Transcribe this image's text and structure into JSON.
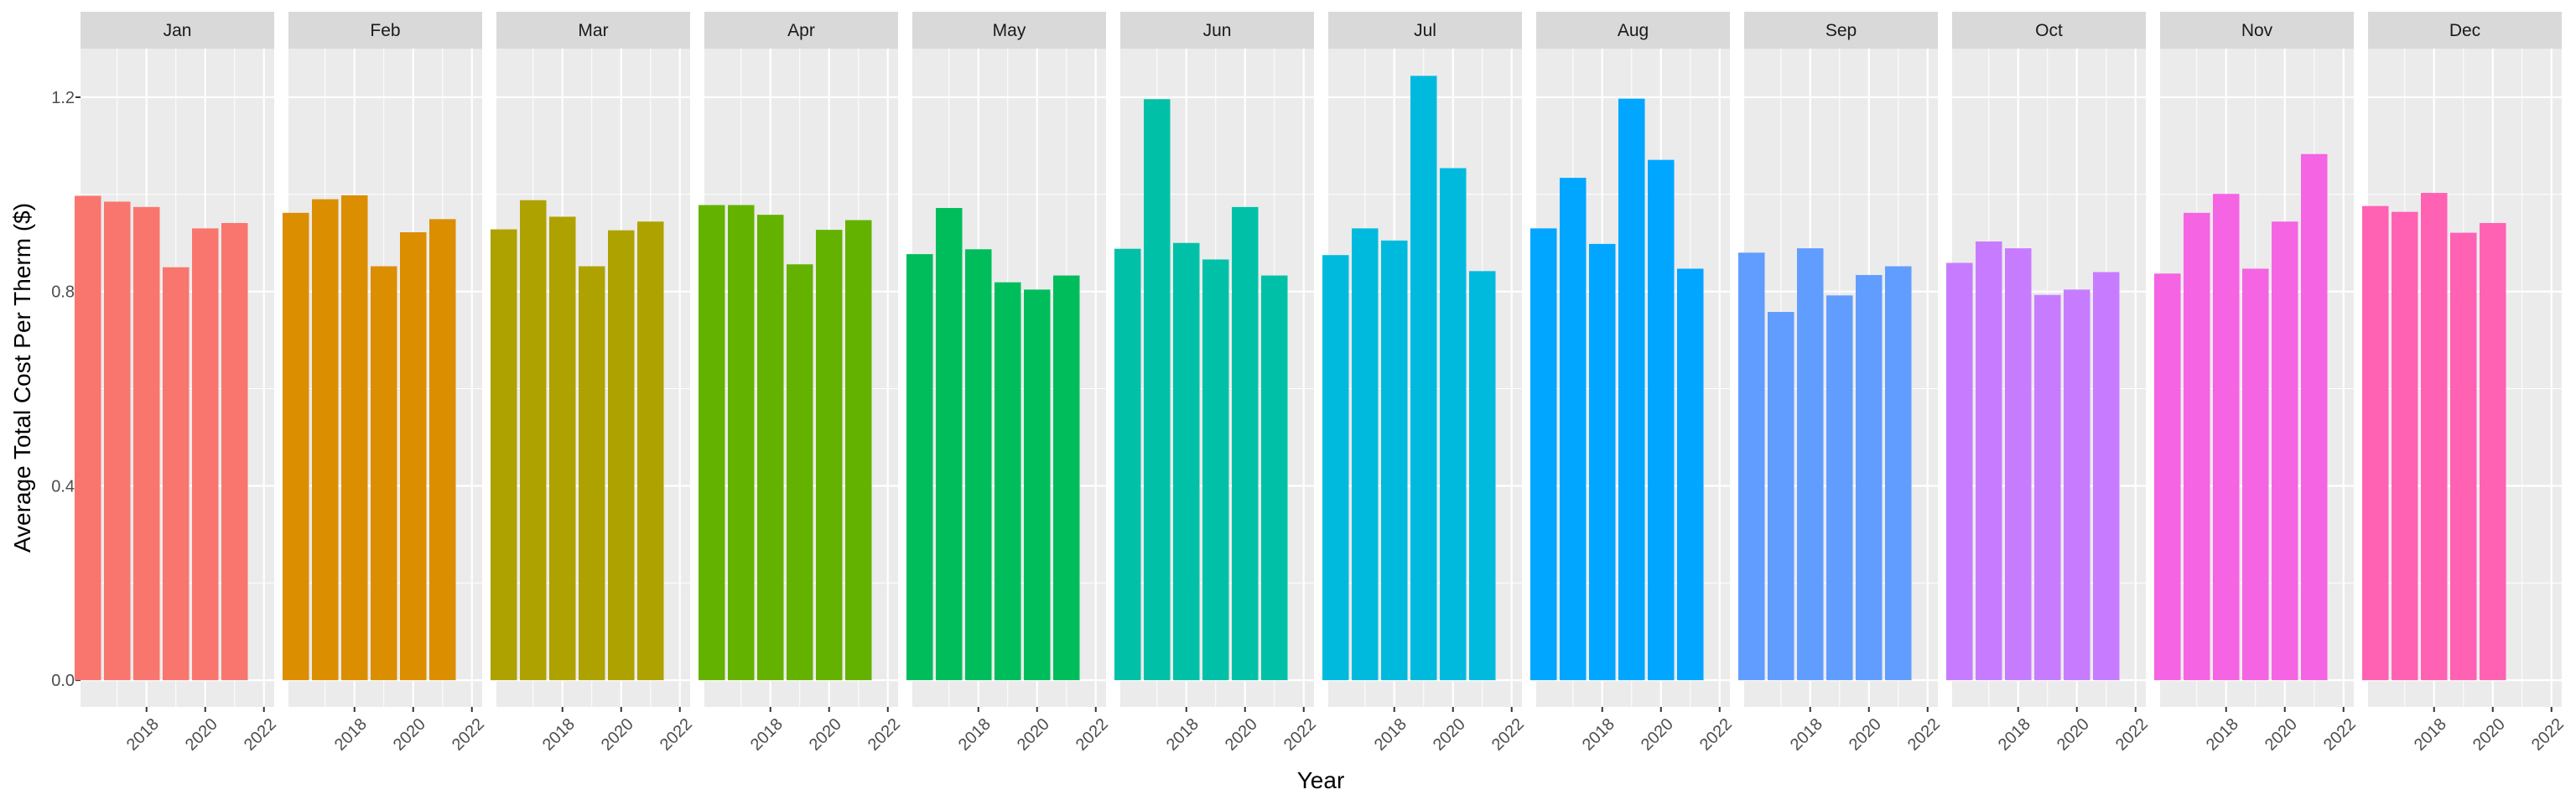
{
  "chart_data": {
    "type": "bar",
    "facet_by": "month",
    "xlabel": "Year",
    "ylabel": "Average Total Cost Per Therm ($)",
    "ylim": [
      -0.055,
      1.3
    ],
    "yticks": [
      0.0,
      0.4,
      0.8,
      1.2
    ],
    "ytick_labels": [
      "0.0",
      "0.4",
      "0.8",
      "1.2"
    ],
    "xlim": [
      2015.75,
      2022.35
    ],
    "xticks": [
      2018,
      2020,
      2022
    ],
    "xtick_labels": [
      "2018",
      "2020",
      "2022"
    ],
    "x": [
      2016,
      2017,
      2018,
      2019,
      2020,
      2021
    ],
    "grid": true,
    "legend": "none",
    "panels": [
      {
        "name": "Jan",
        "color": "#F8766D",
        "values": [
          0.997,
          0.985,
          0.974,
          0.85,
          0.93,
          0.941
        ]
      },
      {
        "name": "Feb",
        "color": "#DB8E00",
        "values": [
          0.962,
          0.99,
          0.998,
          0.852,
          0.922,
          0.949
        ]
      },
      {
        "name": "Mar",
        "color": "#AEA200",
        "values": [
          0.928,
          0.988,
          0.954,
          0.852,
          0.926,
          0.944
        ]
      },
      {
        "name": "Apr",
        "color": "#64B200",
        "values": [
          0.978,
          0.978,
          0.958,
          0.856,
          0.927,
          0.947
        ]
      },
      {
        "name": "May",
        "color": "#00BD5C",
        "values": [
          0.877,
          0.972,
          0.887,
          0.819,
          0.804,
          0.833
        ]
      },
      {
        "name": "Jun",
        "color": "#00C1A7",
        "values": [
          0.888,
          1.196,
          0.9,
          0.866,
          0.974,
          0.833
        ]
      },
      {
        "name": "Jul",
        "color": "#00BADE",
        "values": [
          0.875,
          0.93,
          0.905,
          1.244,
          1.054,
          0.842
        ]
      },
      {
        "name": "Aug",
        "color": "#00A6FF",
        "values": [
          0.93,
          1.034,
          0.898,
          1.197,
          1.071,
          0.847
        ]
      },
      {
        "name": "Sep",
        "color": "#619CFF",
        "values": [
          0.88,
          0.758,
          0.889,
          0.792,
          0.834,
          0.852
        ]
      },
      {
        "name": "Oct",
        "color": "#C77CFF",
        "values": [
          0.859,
          0.903,
          0.889,
          0.793,
          0.804,
          0.84
        ]
      },
      {
        "name": "Nov",
        "color": "#F564E3",
        "values": [
          0.837,
          0.962,
          1.001,
          0.847,
          0.944,
          1.083
        ]
      },
      {
        "name": "Dec",
        "color": "#FF61B3",
        "values": [
          0.976,
          0.964,
          1.003,
          0.921,
          0.941,
          null
        ]
      }
    ]
  }
}
